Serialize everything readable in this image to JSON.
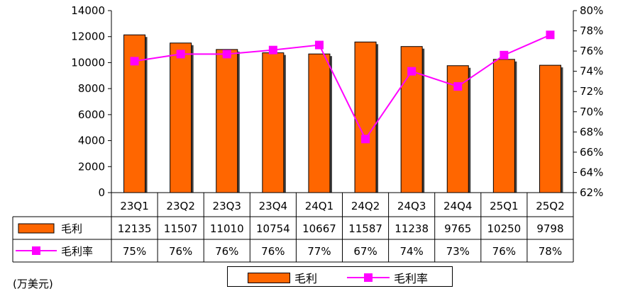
{
  "chart_data": {
    "type": "bar",
    "categories": [
      "23Q1",
      "23Q2",
      "23Q3",
      "23Q4",
      "24Q1",
      "24Q2",
      "24Q3",
      "24Q4",
      "25Q1",
      "25Q2"
    ],
    "series": [
      {
        "name": "毛利",
        "type": "bar",
        "axis": "left",
        "color": "#ff6600",
        "values": [
          12135,
          11507,
          11010,
          10754,
          10667,
          11587,
          11238,
          9765,
          10250,
          9798
        ],
        "labels": [
          "12135",
          "11507",
          "11010",
          "10754",
          "10667",
          "11587",
          "11238",
          "9765",
          "10250",
          "9798"
        ]
      },
      {
        "name": "毛利率",
        "type": "line",
        "axis": "right",
        "color": "#ff00ff",
        "values": [
          75.0,
          75.7,
          75.7,
          76.1,
          76.6,
          67.3,
          74.0,
          72.5,
          75.6,
          77.6
        ],
        "labels": [
          "75%",
          "76%",
          "76%",
          "76%",
          "77%",
          "67%",
          "74%",
          "73%",
          "76%",
          "78%"
        ]
      }
    ],
    "yleft": {
      "min": 0,
      "max": 14000,
      "step": 2000,
      "ticks": [
        "0",
        "2000",
        "4000",
        "6000",
        "8000",
        "10000",
        "12000",
        "14000"
      ]
    },
    "yright": {
      "min": 62,
      "max": 80,
      "step": 2,
      "ticks": [
        "62%",
        "64%",
        "66%",
        "68%",
        "70%",
        "72%",
        "74%",
        "76%",
        "78%",
        "80%"
      ]
    },
    "grid": false,
    "data_table": true,
    "legend_position": "bottom",
    "unit_note": "(万美元)"
  }
}
